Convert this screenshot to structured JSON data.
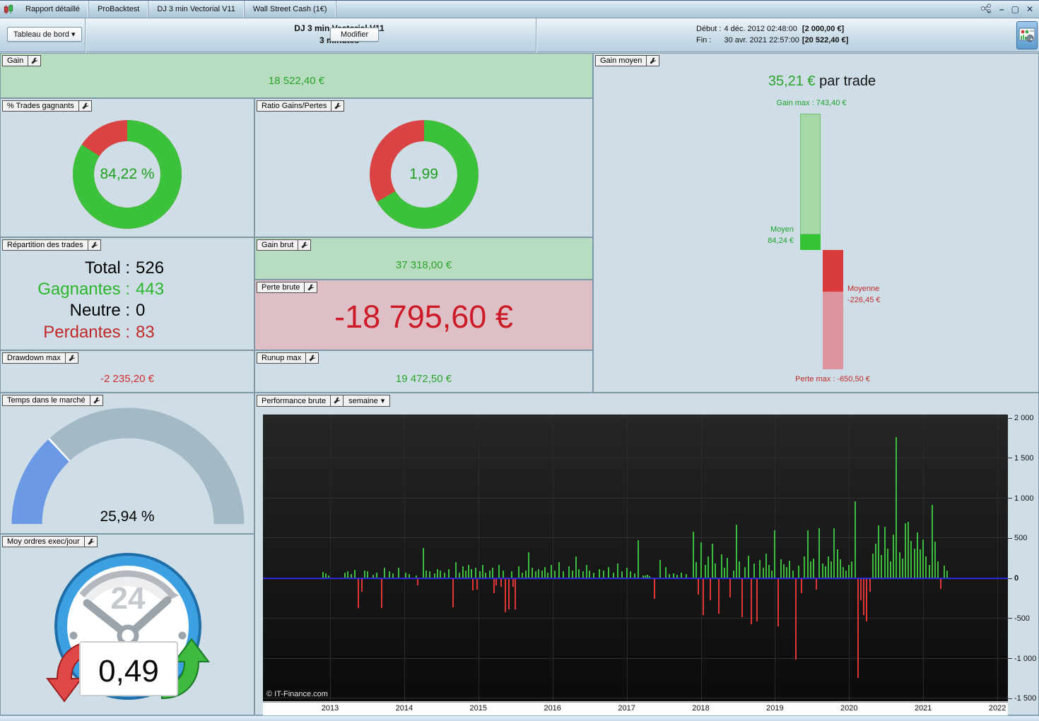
{
  "window": {
    "tabs": [
      "Rapport détaillé",
      "ProBacktest",
      "DJ 3 min Vectorial V11",
      "Wall Street Cash (1€)"
    ],
    "controls": {
      "minimize": "–",
      "maximize": "▢",
      "close": "✕"
    }
  },
  "toolbar": {
    "view_selector": "Tableau de bord",
    "caret": "▾",
    "title_line1": "DJ 3 min Vectorial V11",
    "title_line2": "3 minutes",
    "modify_button": "Modifier",
    "debut_label": "Début :",
    "debut_time": "4 déc. 2012 02:48:00",
    "debut_value": "[2 000,00 €]",
    "fin_label": "Fin :",
    "fin_time": "30 avr. 2021 22:57:00",
    "fin_value": "[20 522,40 €]"
  },
  "panels": {
    "gain": {
      "label": "Gain",
      "value": "18 522,40 €"
    },
    "pct_trades": {
      "label": "% Trades gagnants",
      "value": "84,22 %",
      "percent": 84.22,
      "color_win": "#3cc13c",
      "color_loss": "#d94343"
    },
    "ratio": {
      "label": "Ratio Gains/Pertes",
      "value": "1,99",
      "ratio": 1.99
    },
    "repartition": {
      "label": "Répartition des trades",
      "rows": [
        {
          "label": "Total",
          "value": "526",
          "color": "#000000"
        },
        {
          "label": "Gagnantes",
          "value": "443",
          "color": "#2db52d"
        },
        {
          "label": "Neutre",
          "value": "0",
          "color": "#000000"
        },
        {
          "label": "Perdantes",
          "value": "83",
          "color": "#c22828"
        }
      ]
    },
    "gain_brut": {
      "label": "Gain brut",
      "value": "37 318,00 €"
    },
    "perte_brute": {
      "label": "Perte brute",
      "value": "-18 795,60 €"
    },
    "drawdown": {
      "label": "Drawdown max",
      "value": "-2 235,20 €"
    },
    "runup": {
      "label": "Runup max",
      "value": "19 472,50 €"
    },
    "gain_moyen": {
      "label": "Gain moyen",
      "value": "35,21 €",
      "value_suffix": " par trade",
      "gain_max_label": "Gain max : 743,40 €",
      "gain_max": 743.4,
      "moyen_label": "Moyen",
      "moyen_value": "84,24 €",
      "moyen": 84.24,
      "moyenne_label": "Moyenne",
      "moyenne_value": "-226,45 €",
      "moyenne": -226.45,
      "perte_max_label": "Perte max : -650,50 €",
      "perte_max": -650.5,
      "color_gain_light": "#a6d9a8",
      "color_gain_dark": "#35c335",
      "color_loss_dark": "#d93a3a",
      "color_loss_light": "#dc939b"
    },
    "temps_marche": {
      "label": "Temps dans le marché",
      "value": "25,94 %",
      "percent": 25.94,
      "color_fill": "#6b99e6",
      "color_base": "#a3bac6"
    },
    "moy_ordres": {
      "label": "Moy ordres exec/jour",
      "value": "0,49",
      "clock_text": "24"
    },
    "performance": {
      "label": "Performance brute",
      "period_selector": "semaine"
    }
  },
  "chart_data": {
    "type": "bar",
    "title": "Performance brute (semaine)",
    "copyright": "© IT-Finance.com",
    "ylim": [
      -1542,
      2035
    ],
    "grid": true,
    "colors": {
      "positive": "#3dbd3d",
      "negative": "#e23535",
      "zero_line": "#2b2bd6",
      "background": "#141414"
    },
    "yticks": [
      {
        "v": 2000,
        "label": "2 000"
      },
      {
        "v": 1500,
        "label": "1 500"
      },
      {
        "v": 1000,
        "label": "1 000"
      },
      {
        "v": 500,
        "label": "500"
      },
      {
        "v": 0,
        "label": "0"
      },
      {
        "v": -500,
        "label": "-500"
      },
      {
        "v": -1000,
        "label": "-1 000"
      },
      {
        "v": -1500,
        "label": "-1 500"
      }
    ],
    "xticks": [
      {
        "v": 2013,
        "label": "2013"
      },
      {
        "v": 2014,
        "label": "2014"
      },
      {
        "v": 2015,
        "label": "2015"
      },
      {
        "v": 2016,
        "label": "2016"
      },
      {
        "v": 2017,
        "label": "2017"
      },
      {
        "v": 2018,
        "label": "2018"
      },
      {
        "v": 2019,
        "label": "2019"
      },
      {
        "v": 2020,
        "label": "2020"
      },
      {
        "v": 2021,
        "label": "2021"
      },
      {
        "v": 2022,
        "label": "2022"
      }
    ],
    "bars": [
      [
        2012.9,
        70
      ],
      [
        2012.94,
        50
      ],
      [
        2012.98,
        30
      ],
      [
        2013.2,
        60
      ],
      [
        2013.24,
        75
      ],
      [
        2013.29,
        45
      ],
      [
        2013.33,
        100
      ],
      [
        2013.38,
        -360
      ],
      [
        2013.43,
        -160
      ],
      [
        2013.47,
        90
      ],
      [
        2013.51,
        75
      ],
      [
        2013.58,
        35
      ],
      [
        2013.63,
        60
      ],
      [
        2013.7,
        -365
      ],
      [
        2013.73,
        125
      ],
      [
        2013.8,
        80
      ],
      [
        2013.85,
        55
      ],
      [
        2013.92,
        120
      ],
      [
        2014.02,
        65
      ],
      [
        2014.07,
        45
      ],
      [
        2014.16,
        30
      ],
      [
        2014.18,
        -80
      ],
      [
        2014.26,
        370
      ],
      [
        2014.3,
        90
      ],
      [
        2014.34,
        75
      ],
      [
        2014.41,
        55
      ],
      [
        2014.45,
        105
      ],
      [
        2014.49,
        90
      ],
      [
        2014.54,
        60
      ],
      [
        2014.6,
        105
      ],
      [
        2014.66,
        -355
      ],
      [
        2014.7,
        190
      ],
      [
        2014.74,
        65
      ],
      [
        2014.79,
        140
      ],
      [
        2014.83,
        90
      ],
      [
        2014.87,
        160
      ],
      [
        2014.91,
        105
      ],
      [
        2014.93,
        -145
      ],
      [
        2014.96,
        125
      ],
      [
        2014.98,
        -130
      ],
      [
        2015.02,
        75
      ],
      [
        2015.06,
        160
      ],
      [
        2015.1,
        65
      ],
      [
        2015.15,
        90
      ],
      [
        2015.19,
        120
      ],
      [
        2015.21,
        -175
      ],
      [
        2015.24,
        -75
      ],
      [
        2015.28,
        160
      ],
      [
        2015.31,
        -100
      ],
      [
        2015.34,
        90
      ],
      [
        2015.36,
        -410
      ],
      [
        2015.41,
        -380
      ],
      [
        2015.45,
        75
      ],
      [
        2015.47,
        -100
      ],
      [
        2015.5,
        -380
      ],
      [
        2015.55,
        140
      ],
      [
        2015.59,
        60
      ],
      [
        2015.64,
        90
      ],
      [
        2015.68,
        320
      ],
      [
        2015.73,
        120
      ],
      [
        2015.77,
        75
      ],
      [
        2015.81,
        105
      ],
      [
        2015.86,
        85
      ],
      [
        2015.9,
        130
      ],
      [
        2015.94,
        60
      ],
      [
        2015.98,
        160
      ],
      [
        2016.03,
        90
      ],
      [
        2016.09,
        190
      ],
      [
        2016.15,
        75
      ],
      [
        2016.22,
        140
      ],
      [
        2016.27,
        90
      ],
      [
        2016.32,
        260
      ],
      [
        2016.36,
        110
      ],
      [
        2016.41,
        75
      ],
      [
        2016.46,
        160
      ],
      [
        2016.5,
        90
      ],
      [
        2016.56,
        60
      ],
      [
        2016.63,
        105
      ],
      [
        2016.69,
        85
      ],
      [
        2016.76,
        130
      ],
      [
        2016.82,
        65
      ],
      [
        2016.88,
        175
      ],
      [
        2016.94,
        80
      ],
      [
        2017.0,
        120
      ],
      [
        2017.05,
        80
      ],
      [
        2017.11,
        55
      ],
      [
        2017.16,
        470
      ],
      [
        2017.22,
        30
      ],
      [
        2017.25,
        25
      ],
      [
        2017.28,
        35
      ],
      [
        2017.31,
        20
      ],
      [
        2017.38,
        -250
      ],
      [
        2017.45,
        220
      ],
      [
        2017.53,
        130
      ],
      [
        2017.58,
        40
      ],
      [
        2017.63,
        55
      ],
      [
        2017.68,
        35
      ],
      [
        2017.74,
        60
      ],
      [
        2017.8,
        45
      ],
      [
        2017.9,
        570
      ],
      [
        2017.94,
        190
      ],
      [
        2017.97,
        -190
      ],
      [
        2018.0,
        440
      ],
      [
        2018.03,
        -450
      ],
      [
        2018.06,
        160
      ],
      [
        2018.1,
        260
      ],
      [
        2018.13,
        -260
      ],
      [
        2018.16,
        420
      ],
      [
        2018.2,
        175
      ],
      [
        2018.24,
        -430
      ],
      [
        2018.28,
        290
      ],
      [
        2018.32,
        120
      ],
      [
        2018.36,
        250
      ],
      [
        2018.4,
        -230
      ],
      [
        2018.44,
        90
      ],
      [
        2018.48,
        660
      ],
      [
        2018.52,
        200
      ],
      [
        2018.56,
        -480
      ],
      [
        2018.6,
        130
      ],
      [
        2018.64,
        270
      ],
      [
        2018.68,
        -560
      ],
      [
        2018.72,
        180
      ],
      [
        2018.76,
        -530
      ],
      [
        2018.8,
        220
      ],
      [
        2018.84,
        120
      ],
      [
        2018.88,
        300
      ],
      [
        2018.92,
        160
      ],
      [
        2018.96,
        90
      ],
      [
        2019.0,
        590
      ],
      [
        2019.04,
        -590
      ],
      [
        2019.08,
        230
      ],
      [
        2019.12,
        170
      ],
      [
        2019.16,
        130
      ],
      [
        2019.2,
        210
      ],
      [
        2019.24,
        90
      ],
      [
        2019.28,
        -1000
      ],
      [
        2019.32,
        150
      ],
      [
        2019.36,
        -180
      ],
      [
        2019.4,
        260
      ],
      [
        2019.44,
        590
      ],
      [
        2019.48,
        200
      ],
      [
        2019.52,
        240
      ],
      [
        2019.56,
        -130
      ],
      [
        2019.6,
        620
      ],
      [
        2019.64,
        180
      ],
      [
        2019.68,
        140
      ],
      [
        2019.72,
        260
      ],
      [
        2019.76,
        200
      ],
      [
        2019.8,
        615
      ],
      [
        2019.84,
        350
      ],
      [
        2019.88,
        230
      ],
      [
        2019.92,
        130
      ],
      [
        2019.96,
        90
      ],
      [
        2020.0,
        160
      ],
      [
        2020.04,
        200
      ],
      [
        2020.08,
        950
      ],
      [
        2020.12,
        -1230
      ],
      [
        2020.16,
        -260
      ],
      [
        2020.2,
        -450
      ],
      [
        2020.24,
        -530
      ],
      [
        2020.28,
        -160
      ],
      [
        2020.32,
        300
      ],
      [
        2020.36,
        420
      ],
      [
        2020.4,
        650
      ],
      [
        2020.44,
        280
      ],
      [
        2020.48,
        630
      ],
      [
        2020.52,
        360
      ],
      [
        2020.56,
        200
      ],
      [
        2020.6,
        540
      ],
      [
        2020.64,
        1750
      ],
      [
        2020.68,
        320
      ],
      [
        2020.72,
        240
      ],
      [
        2020.76,
        680
      ],
      [
        2020.8,
        700
      ],
      [
        2020.84,
        460
      ],
      [
        2020.88,
        360
      ],
      [
        2020.92,
        560
      ],
      [
        2020.96,
        350
      ],
      [
        2021.0,
        480
      ],
      [
        2021.04,
        260
      ],
      [
        2021.08,
        160
      ],
      [
        2021.12,
        905
      ],
      [
        2021.16,
        450
      ],
      [
        2021.2,
        200
      ],
      [
        2021.24,
        -120
      ],
      [
        2021.28,
        150
      ],
      [
        2021.32,
        90
      ]
    ]
  }
}
